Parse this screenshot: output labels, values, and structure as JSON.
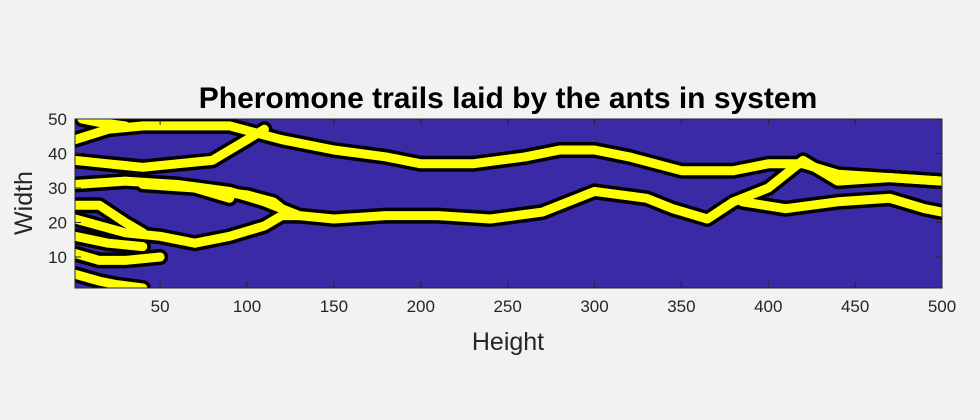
{
  "chart_data": {
    "type": "heatmap",
    "title": "Pheromone trails laid by the ants in system",
    "xlabel": "Height",
    "ylabel": "Width",
    "xlim": [
      1,
      500
    ],
    "ylim": [
      1,
      50
    ],
    "x_ticks": [
      50,
      100,
      150,
      200,
      250,
      300,
      350,
      400,
      450,
      500
    ],
    "y_ticks": [
      10,
      20,
      30,
      40,
      50
    ],
    "grid": false,
    "colors": {
      "background": "#3b2aa6",
      "trail": "#ffff00",
      "trail_edge": "#000000",
      "figure": "#f2f2f2",
      "axis": "#262626"
    },
    "trails": [
      {
        "points": [
          [
            1,
            44
          ],
          [
            20,
            47
          ],
          [
            40,
            48
          ],
          [
            60,
            48
          ],
          [
            80,
            48
          ],
          [
            90,
            48
          ],
          [
            120,
            44
          ],
          [
            150,
            41
          ],
          [
            180,
            39
          ],
          [
            200,
            37
          ],
          [
            230,
            37
          ],
          [
            260,
            39
          ],
          [
            280,
            41
          ],
          [
            300,
            41
          ],
          [
            320,
            39
          ],
          [
            350,
            35
          ],
          [
            380,
            35
          ],
          [
            400,
            37
          ],
          [
            420,
            37
          ],
          [
            440,
            34
          ],
          [
            470,
            33
          ],
          [
            500,
            32
          ]
        ]
      },
      {
        "points": [
          [
            1,
            31
          ],
          [
            30,
            32
          ],
          [
            60,
            31
          ],
          [
            90,
            29
          ],
          [
            110,
            26
          ],
          [
            130,
            22
          ],
          [
            150,
            21
          ],
          [
            180,
            22
          ],
          [
            210,
            22
          ],
          [
            240,
            21
          ],
          [
            270,
            23
          ],
          [
            300,
            29
          ],
          [
            330,
            27
          ],
          [
            345,
            24
          ],
          [
            365,
            21
          ],
          [
            380,
            26
          ],
          [
            400,
            30
          ],
          [
            420,
            38
          ],
          [
            440,
            32
          ],
          [
            470,
            33
          ],
          [
            500,
            32
          ]
        ]
      },
      {
        "points": [
          [
            1,
            21
          ],
          [
            30,
            17
          ],
          [
            50,
            16
          ],
          [
            70,
            14
          ],
          [
            90,
            16
          ],
          [
            110,
            19
          ],
          [
            120,
            22
          ],
          [
            130,
            22
          ]
        ]
      },
      {
        "points": [
          [
            1,
            25
          ],
          [
            15,
            25
          ],
          [
            30,
            20
          ],
          [
            40,
            17
          ]
        ]
      },
      {
        "points": [
          [
            1,
            16
          ],
          [
            20,
            14
          ],
          [
            40,
            13
          ]
        ]
      },
      {
        "points": [
          [
            1,
            38
          ],
          [
            20,
            37
          ],
          [
            40,
            36
          ],
          [
            60,
            37
          ],
          [
            80,
            38
          ],
          [
            100,
            44
          ],
          [
            110,
            47
          ]
        ]
      },
      {
        "points": [
          [
            60,
            31
          ],
          [
            80,
            29
          ],
          [
            100,
            28
          ],
          [
            115,
            26
          ],
          [
            125,
            22
          ]
        ]
      },
      {
        "points": [
          [
            385,
            26
          ],
          [
            410,
            24
          ],
          [
            440,
            26
          ],
          [
            470,
            27
          ],
          [
            490,
            24
          ],
          [
            500,
            23
          ]
        ]
      },
      {
        "points": [
          [
            40,
            31
          ],
          [
            70,
            30
          ],
          [
            90,
            27
          ]
        ]
      },
      {
        "points": [
          [
            1,
            5
          ],
          [
            15,
            3
          ],
          [
            25,
            2
          ],
          [
            40,
            1
          ]
        ]
      },
      {
        "points": [
          [
            1,
            11
          ],
          [
            15,
            9
          ],
          [
            30,
            9
          ],
          [
            50,
            10
          ]
        ]
      },
      {
        "points": [
          [
            5,
            50
          ],
          [
            15,
            49
          ],
          [
            30,
            48
          ]
        ]
      }
    ]
  }
}
